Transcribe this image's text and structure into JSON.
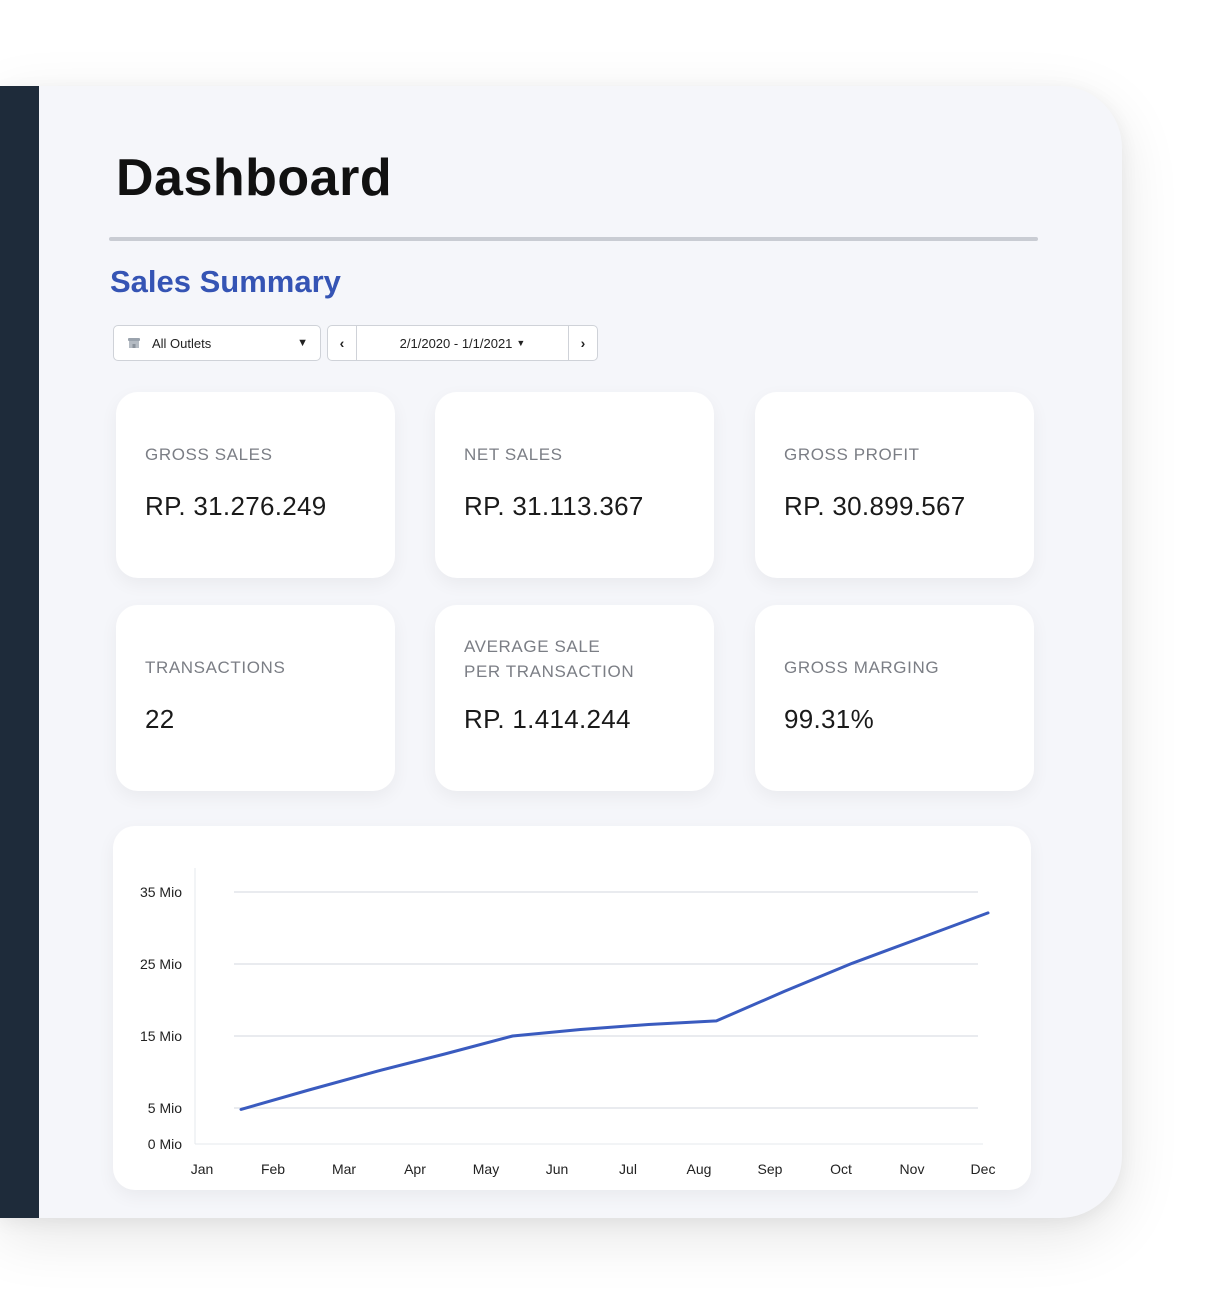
{
  "header": {
    "title": "Dashboard"
  },
  "section": {
    "title": "Sales Summary"
  },
  "filters": {
    "outlet": "All Outlets",
    "outlet_icon": "store-icon",
    "date_range": "2/1/2020 - 1/1/2021",
    "prev": "‹",
    "next": "›"
  },
  "cards": [
    {
      "label": "GROSS SALES",
      "value": "RP. 31.276.249"
    },
    {
      "label": "NET SALES",
      "value": "RP. 31.113.367"
    },
    {
      "label": "GROSS PROFIT",
      "value": "RP. 30.899.567"
    },
    {
      "label": "TRANSACTIONS",
      "value": "22"
    },
    {
      "label": "AVERAGE SALE",
      "label2": "PER TRANSACTION",
      "value": "RP. 1.414.244"
    },
    {
      "label": "GROSS MARGING",
      "value": "99.31%"
    }
  ],
  "colors": {
    "accent": "#3554b4",
    "sidebar": "#1e2b3a",
    "line": "#3a5bbf"
  },
  "chart_data": {
    "type": "line",
    "categories": [
      "Jan",
      "Feb",
      "Mar",
      "Apr",
      "May",
      "Jun",
      "Jul",
      "Aug",
      "Sep",
      "Oct",
      "Nov",
      "Dec"
    ],
    "y_ticks": [
      0,
      5,
      15,
      25,
      35
    ],
    "y_tick_labels": [
      "0 Mio",
      "5 Mio",
      "15 Mio",
      "25 Mio",
      "35 Mio"
    ],
    "ylim": [
      0,
      40
    ],
    "grid": true,
    "x": [
      "Jan",
      "Feb",
      "Mar",
      "Apr",
      "May",
      "Jun",
      "Jul",
      "Aug",
      "Sep",
      "Oct",
      "Nov",
      "Dec"
    ],
    "values": [
      4.8,
      7.5,
      10.1,
      12.5,
      15.0,
      15.9,
      16.6,
      17.1,
      21.2,
      25.1,
      28.6,
      32.1
    ],
    "title": "",
    "xlabel": "",
    "ylabel": ""
  }
}
